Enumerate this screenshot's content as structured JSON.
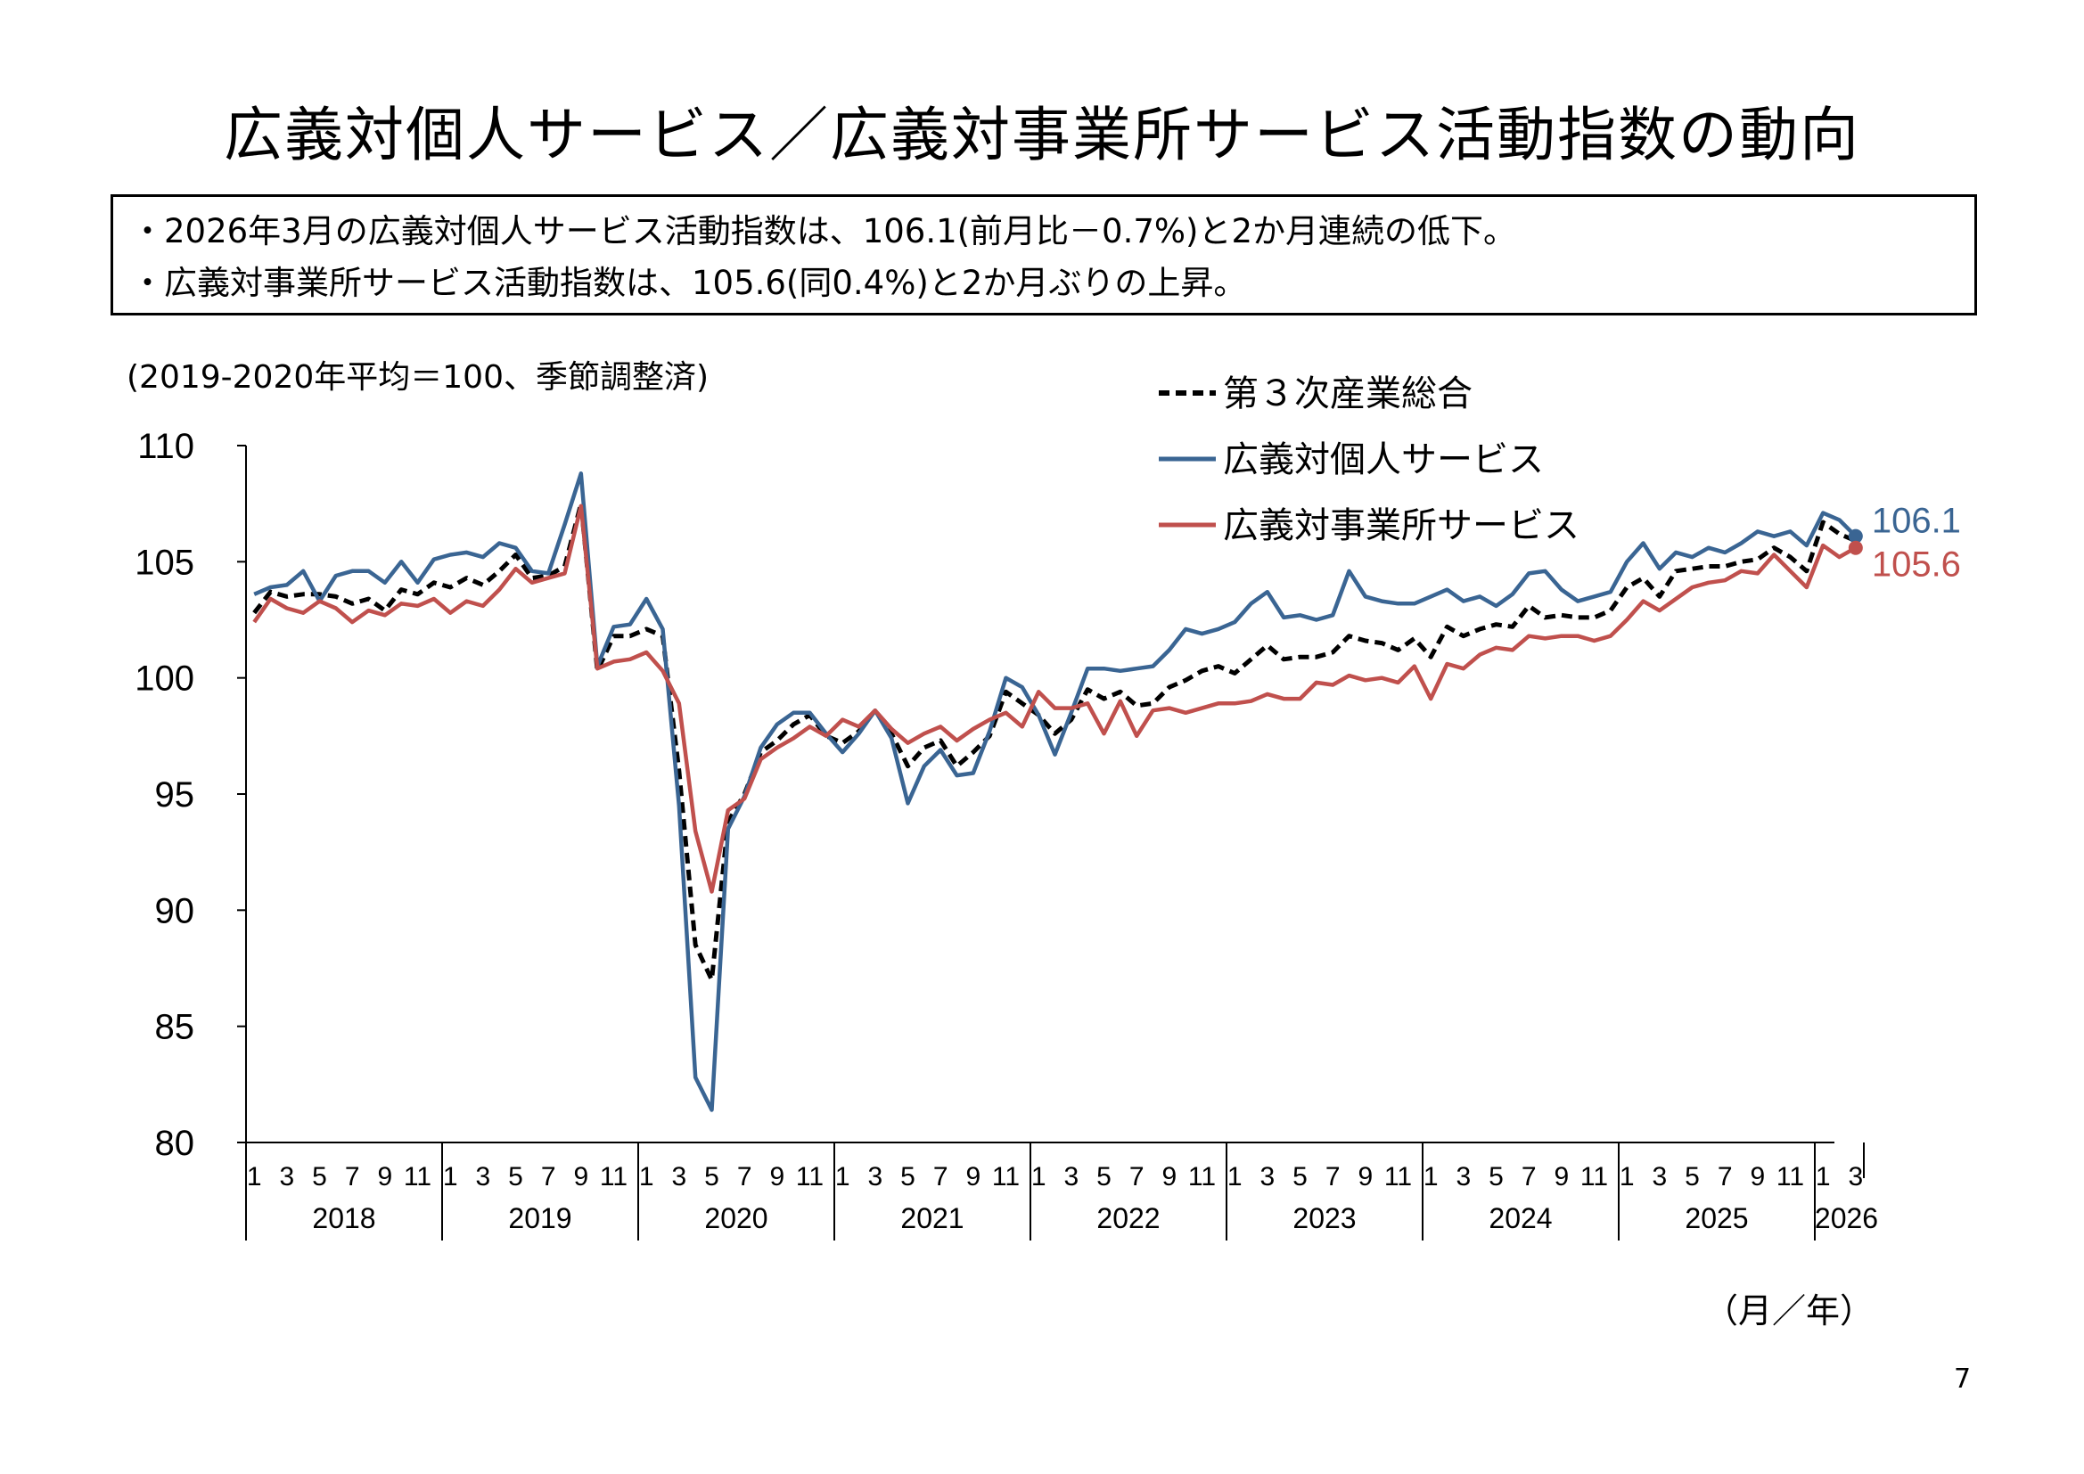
{
  "header": {
    "title": "広義対個人サービス／広義対事業所サービス活動指数の動向"
  },
  "summary": [
    "・2026年3月の広義対個人サービス活動指数は、106.1(前月比－0.7%)と2か月連続の低下。",
    "・広義対事業所サービス活動指数は、105.6(同0.4%)と2か月ぶりの上昇。"
  ],
  "footer": {
    "unit_label": "（月／年）",
    "page_number": "7"
  },
  "chart_data": {
    "type": "line",
    "subtitle": "(2019-2020年平均＝100、季節調整済)",
    "ylim": [
      80,
      110
    ],
    "yticks": [
      80,
      85,
      90,
      95,
      100,
      105,
      110
    ],
    "month_tick_labels": [
      "1",
      "3",
      "5",
      "7",
      "9",
      "11"
    ],
    "years": [
      "2018",
      "2019",
      "2020",
      "2021",
      "2022",
      "2023",
      "2024",
      "2025",
      "2026"
    ],
    "x_start": "2018-01",
    "x_end": "2026-03",
    "legend_position": "top-right",
    "series": [
      {
        "name": "第３次産業総合",
        "color": "#000000",
        "style": "dashed",
        "values": [
          102.8,
          103.7,
          103.5,
          103.6,
          103.6,
          103.5,
          103.2,
          103.4,
          102.9,
          103.8,
          103.6,
          104.1,
          103.9,
          104.3,
          104.0,
          104.6,
          105.3,
          104.3,
          104.4,
          104.8,
          107.5,
          100.3,
          101.8,
          101.8,
          102.1,
          101.8,
          96.0,
          88.5,
          87.0,
          93.8,
          95.0,
          96.8,
          97.3,
          98.0,
          98.4,
          97.5,
          97.2,
          97.7,
          98.6,
          97.6,
          96.2,
          97.0,
          97.3,
          96.2,
          96.8,
          97.5,
          99.4,
          98.9,
          98.4,
          97.6,
          98.2,
          99.5,
          99.1,
          99.4,
          98.8,
          98.9,
          99.6,
          99.9,
          100.3,
          100.5,
          100.2,
          100.8,
          101.4,
          100.8,
          100.9,
          100.9,
          101.1,
          101.8,
          101.6,
          101.5,
          101.2,
          101.7,
          100.9,
          102.2,
          101.8,
          102.1,
          102.3,
          102.2,
          103.1,
          102.6,
          102.7,
          102.6,
          102.6,
          102.9,
          103.9,
          104.3,
          103.5,
          104.6,
          104.7,
          104.8,
          104.8,
          105.0,
          105.1,
          105.6,
          105.2,
          104.6,
          106.7,
          106.2,
          105.9
        ]
      },
      {
        "name": "広義対個人サービス",
        "color": "#3A6593",
        "style": "solid",
        "values": [
          103.6,
          103.9,
          104.0,
          104.6,
          103.3,
          104.4,
          104.6,
          104.6,
          104.1,
          105.0,
          104.1,
          105.1,
          105.3,
          105.4,
          105.2,
          105.8,
          105.6,
          104.6,
          104.5,
          106.6,
          108.8,
          100.5,
          102.2,
          102.3,
          103.4,
          102.1,
          94.5,
          82.8,
          81.4,
          93.5,
          94.9,
          97.0,
          98.0,
          98.5,
          98.5,
          97.6,
          96.8,
          97.6,
          98.6,
          97.4,
          94.6,
          96.2,
          96.9,
          95.8,
          95.9,
          97.7,
          100.0,
          99.6,
          98.4,
          96.7,
          98.5,
          100.4,
          100.4,
          100.3,
          100.4,
          100.5,
          101.2,
          102.1,
          101.9,
          102.1,
          102.4,
          103.2,
          103.7,
          102.6,
          102.7,
          102.5,
          102.7,
          104.6,
          103.5,
          103.3,
          103.2,
          103.2,
          103.5,
          103.8,
          103.3,
          103.5,
          103.1,
          103.6,
          104.5,
          104.6,
          103.8,
          103.3,
          103.5,
          103.7,
          105.0,
          105.8,
          104.7,
          105.4,
          105.2,
          105.6,
          105.4,
          105.8,
          106.3,
          106.1,
          106.3,
          105.7,
          107.1,
          106.8,
          106.1
        ]
      },
      {
        "name": "広義対事業所サービス",
        "color": "#C0504D",
        "style": "solid",
        "values": [
          102.4,
          103.4,
          103.0,
          102.8,
          103.3,
          103.0,
          102.4,
          102.9,
          102.7,
          103.2,
          103.1,
          103.4,
          102.8,
          103.3,
          103.1,
          103.8,
          104.7,
          104.1,
          104.3,
          104.5,
          107.4,
          100.4,
          100.7,
          100.8,
          101.1,
          100.3,
          98.9,
          93.4,
          90.8,
          94.3,
          94.8,
          96.5,
          97.0,
          97.4,
          97.9,
          97.5,
          98.2,
          97.9,
          98.6,
          97.8,
          97.2,
          97.6,
          97.9,
          97.3,
          97.8,
          98.2,
          98.5,
          97.9,
          99.4,
          98.7,
          98.7,
          98.9,
          97.6,
          99.0,
          97.5,
          98.6,
          98.7,
          98.5,
          98.7,
          98.9,
          98.9,
          99.0,
          99.3,
          99.1,
          99.1,
          99.8,
          99.7,
          100.1,
          99.9,
          100.0,
          99.8,
          100.5,
          99.1,
          100.6,
          100.4,
          101.0,
          101.3,
          101.2,
          101.8,
          101.7,
          101.8,
          101.8,
          101.6,
          101.8,
          102.5,
          103.3,
          102.9,
          103.4,
          103.9,
          104.1,
          104.2,
          104.6,
          104.5,
          105.3,
          104.6,
          103.9,
          105.7,
          105.2,
          105.6
        ]
      }
    ],
    "end_labels": [
      {
        "series": "広義対個人サービス",
        "text": "106.1"
      },
      {
        "series": "広義対事業所サービス",
        "text": "105.6"
      }
    ]
  }
}
